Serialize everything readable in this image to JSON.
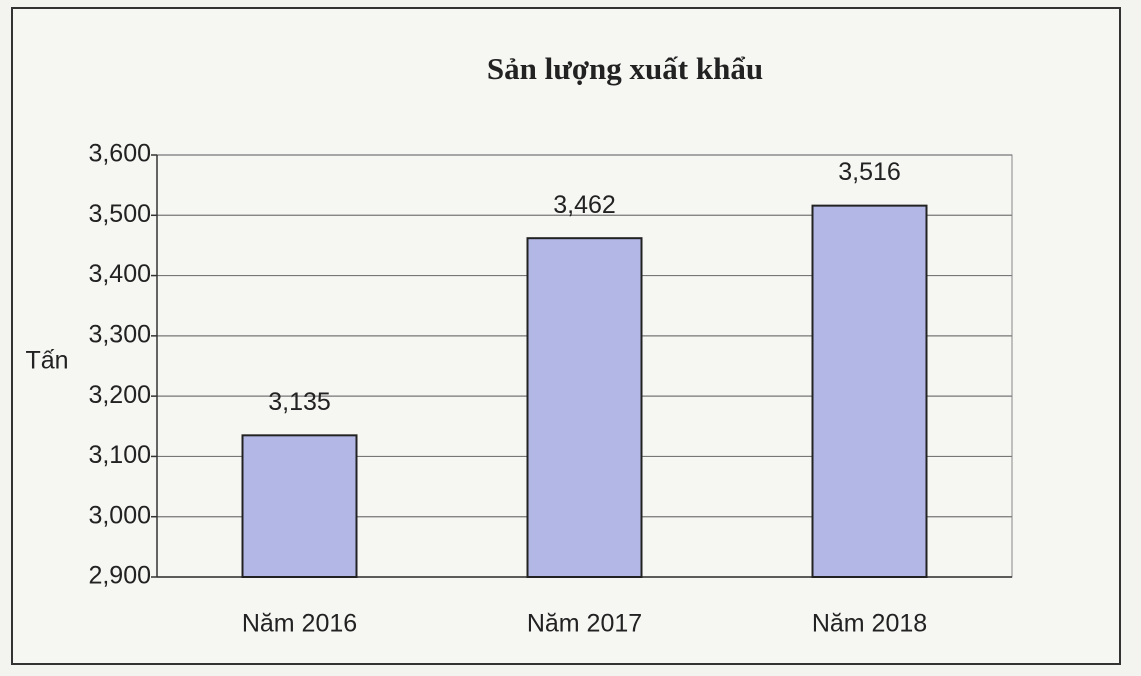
{
  "chart_data": {
    "type": "bar",
    "title": "Sản lượng xuất khẩu",
    "y_label": "Tấn",
    "categories": [
      "Năm 2016",
      "Năm 2017",
      "Năm 2018"
    ],
    "values": [
      3135,
      3462,
      3516
    ],
    "value_labels": [
      "3,135",
      "3,462",
      "3,516"
    ],
    "color": "#b3b7e6",
    "ylim": [
      2900,
      3600
    ],
    "yticks": [
      {
        "value": 2900,
        "label": "2,900"
      },
      {
        "value": 3000,
        "label": "3,000"
      },
      {
        "value": 3100,
        "label": "3,100"
      },
      {
        "value": 3200,
        "label": "3,200"
      },
      {
        "value": 3300,
        "label": "3,300"
      },
      {
        "value": 3400,
        "label": "3,400"
      },
      {
        "value": 3500,
        "label": "3,500"
      },
      {
        "value": 3600,
        "label": "3,600"
      }
    ],
    "grid": true
  }
}
